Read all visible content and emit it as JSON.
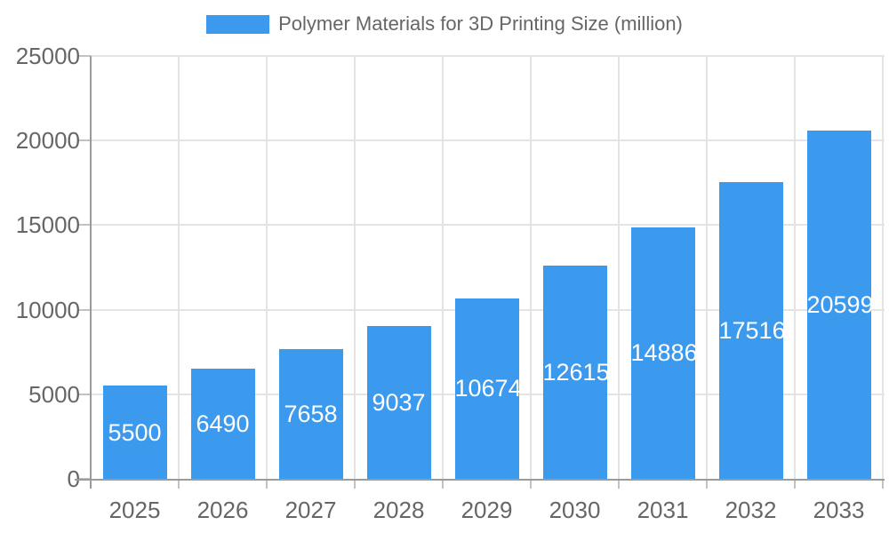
{
  "chart_data": {
    "type": "bar",
    "title": "Polymer Materials for 3D Printing Size (million)",
    "categories": [
      "2025",
      "2026",
      "2027",
      "2028",
      "2029",
      "2030",
      "2031",
      "2032",
      "2033"
    ],
    "values": [
      5500,
      6490,
      7658,
      9037,
      10674,
      12615,
      14886,
      17516,
      20599
    ],
    "xlabel": "",
    "ylabel": "",
    "ylim": [
      0,
      25000
    ],
    "yticks": [
      0,
      5000,
      10000,
      15000,
      20000,
      25000
    ],
    "grid": true,
    "legend_position": "top-center",
    "value_labels": "inside-center",
    "colors": {
      "bar": "#3B99EE",
      "grid": "#E4E4E4",
      "axis": "#9B9B9B",
      "tick": "#C2C2C2",
      "text": "#666666",
      "value_text": "#FFFFFF",
      "background": "#FFFFFF"
    }
  }
}
